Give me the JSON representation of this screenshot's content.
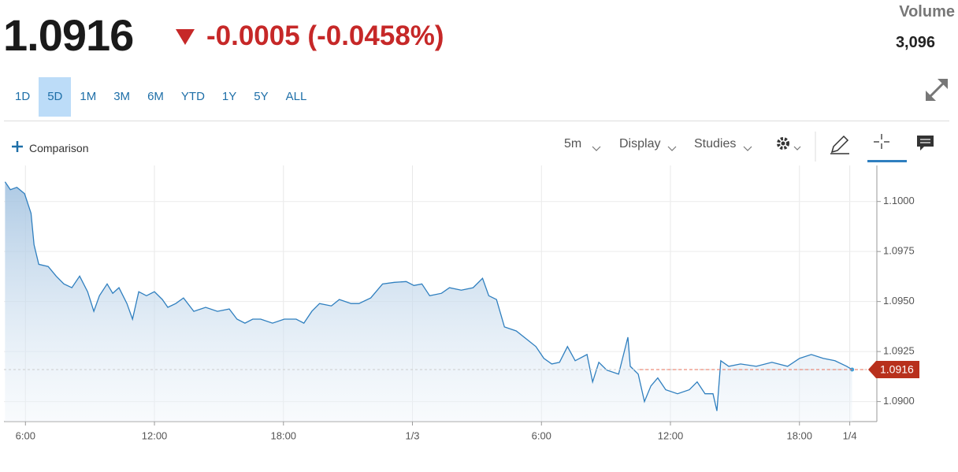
{
  "header": {
    "price": "1.0916",
    "change": "-0.0005 (-0.0458%)",
    "volume_label": "Volume",
    "volume": "3,096"
  },
  "ranges": [
    {
      "label": "1D",
      "active": false
    },
    {
      "label": "5D",
      "active": true
    },
    {
      "label": "1M",
      "active": false
    },
    {
      "label": "3M",
      "active": false
    },
    {
      "label": "6M",
      "active": false
    },
    {
      "label": "YTD",
      "active": false
    },
    {
      "label": "1Y",
      "active": false
    },
    {
      "label": "5Y",
      "active": false
    },
    {
      "label": "ALL",
      "active": false
    }
  ],
  "toolbar": {
    "comparison": "Comparison",
    "interval": "5m",
    "display": "Display",
    "studies": "Studies"
  },
  "chart_data": {
    "type": "line",
    "color": "#2f7fbf",
    "x": [
      5.05,
      5.3,
      5.6,
      5.96,
      6.26,
      6.4,
      6.62,
      7.06,
      7.43,
      7.79,
      8.16,
      8.52,
      8.89,
      9.18,
      9.44,
      9.8,
      10.06,
      10.35,
      10.72,
      10.98,
      11.27,
      11.63,
      12.0,
      12.37,
      12.62,
      12.99,
      13.35,
      13.83,
      14.38,
      14.93,
      15.48,
      15.84,
      16.21,
      16.57,
      16.94,
      17.49,
      18.04,
      18.59,
      18.95,
      19.32,
      19.68,
      20.23,
      20.6,
      21.15,
      21.51,
      22.06,
      22.61,
      23.16,
      23.71,
      24.07,
      24.44,
      24.8,
      25.35,
      25.72,
      26.27,
      26.82,
      27.26,
      27.55,
      27.91,
      28.28,
      28.83,
      29.38,
      29.74,
      30.11,
      30.48,
      30.84,
      31.21,
      31.57,
      32.12,
      32.38,
      32.67,
      33.04,
      33.59,
      34.02,
      34.13,
      34.5,
      34.79,
      35.09,
      35.41,
      35.78,
      36.33,
      36.88,
      37.24,
      37.61,
      37.98,
      38.16,
      38.34,
      38.71,
      39.26,
      39.99,
      40.72,
      41.45,
      42.0,
      42.55,
      43.1,
      43.65,
      44.2,
      44.45
    ],
    "values": [
      1.10098,
      1.10059,
      1.10071,
      1.10039,
      1.09941,
      1.09784,
      1.09686,
      1.09675,
      1.09627,
      1.09588,
      1.09569,
      1.09627,
      1.09549,
      1.09451,
      1.09529,
      1.09588,
      1.09541,
      1.09569,
      1.0949,
      1.09412,
      1.09549,
      1.09529,
      1.09549,
      1.0951,
      1.09471,
      1.0949,
      1.09518,
      1.09451,
      1.09471,
      1.09451,
      1.09463,
      1.09412,
      1.09392,
      1.09412,
      1.09412,
      1.09392,
      1.09412,
      1.09412,
      1.09392,
      1.09451,
      1.0949,
      1.09478,
      1.0951,
      1.0949,
      1.0949,
      1.09518,
      1.09588,
      1.09596,
      1.096,
      1.0958,
      1.09588,
      1.09529,
      1.09541,
      1.09569,
      1.09557,
      1.09569,
      1.09616,
      1.09529,
      1.0951,
      1.09373,
      1.09353,
      1.09306,
      1.09275,
      1.09216,
      1.09188,
      1.09196,
      1.09275,
      1.09204,
      1.09235,
      1.09098,
      1.09196,
      1.09157,
      1.09137,
      1.09322,
      1.09176,
      1.09137,
      1.09,
      1.09078,
      1.09118,
      1.09059,
      1.09039,
      1.09059,
      1.09098,
      1.09039,
      1.09039,
      1.08953,
      1.09204,
      1.09176,
      1.09188,
      1.09176,
      1.09196,
      1.09176,
      1.09216,
      1.09235,
      1.09216,
      1.09204,
      1.09176,
      1.0916
    ],
    "xlim": [
      5.0,
      45.6
    ],
    "xticks": [
      {
        "value": 6,
        "label": "6:00"
      },
      {
        "value": 12,
        "label": "12:00"
      },
      {
        "value": 18,
        "label": "18:00"
      },
      {
        "value": 24,
        "label": "1/3"
      },
      {
        "value": 30,
        "label": "6:00"
      },
      {
        "value": 36,
        "label": "12:00"
      },
      {
        "value": 42,
        "label": "18:00"
      },
      {
        "value": 44.34,
        "label": "1/4"
      }
    ],
    "ylim": [
      1.089,
      1.1018
    ],
    "yticks": [
      {
        "value": 1.09,
        "label": "1.0900"
      },
      {
        "value": 1.0925,
        "label": "1.0925"
      },
      {
        "value": 1.095,
        "label": "1.0950"
      },
      {
        "value": 1.0975,
        "label": "1.0975"
      },
      {
        "value": 1.1,
        "label": "1.1000"
      }
    ],
    "current_price": {
      "value": 1.0916,
      "label": "1.0916"
    },
    "grid": true
  }
}
